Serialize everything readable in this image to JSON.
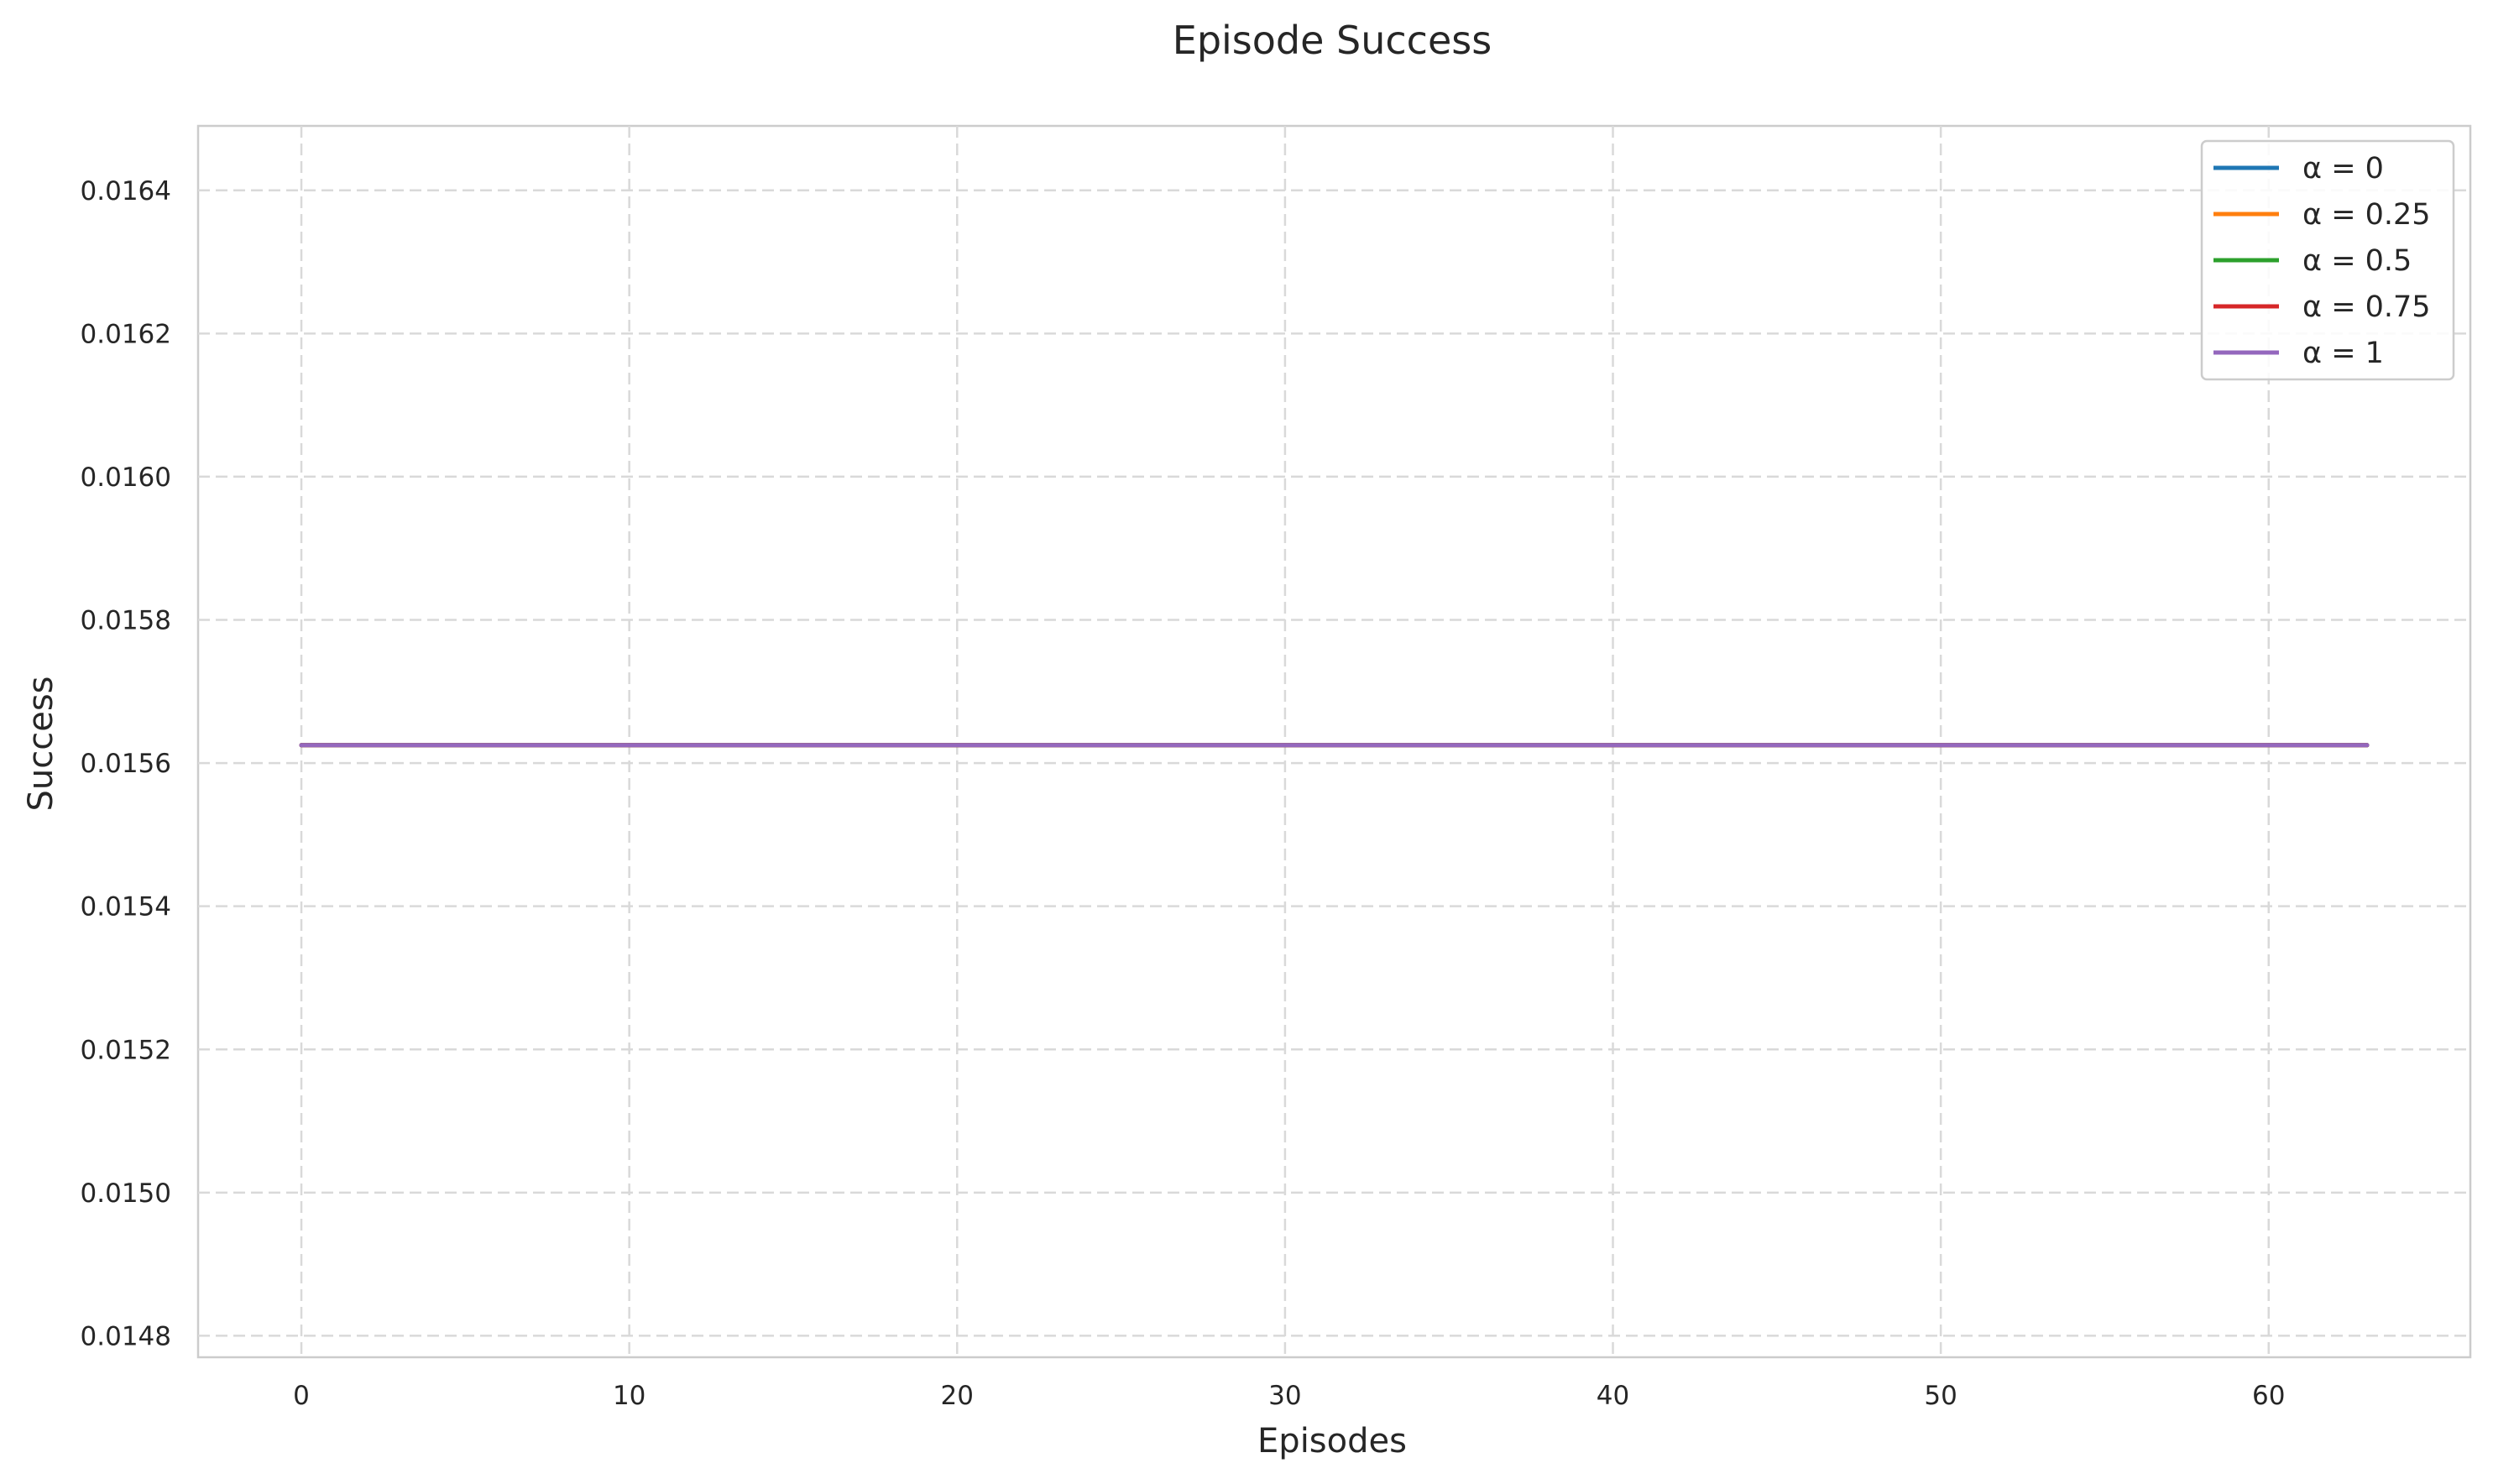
{
  "chart_data": {
    "type": "line",
    "title": "Episode Success",
    "xlabel": "Episodes",
    "ylabel": "Success",
    "xlim": [
      -3.15,
      66.15
    ],
    "ylim": [
      0.01477,
      0.01649
    ],
    "x_ticks": [
      0,
      10,
      20,
      30,
      40,
      50,
      60
    ],
    "x_tick_labels": [
      "0",
      "10",
      "20",
      "30",
      "40",
      "50",
      "60"
    ],
    "y_ticks": [
      0.0148,
      0.015,
      0.0152,
      0.0154,
      0.0156,
      0.0158,
      0.016,
      0.0162,
      0.0164
    ],
    "y_tick_labels": [
      "0.0148",
      "0.0150",
      "0.0152",
      "0.0154",
      "0.0156",
      "0.0158",
      "0.0160",
      "0.0162",
      "0.0164"
    ],
    "grid": true,
    "legend_position": "top-right",
    "series": [
      {
        "name": "α = 0",
        "color": "#1f77b4",
        "x": [
          0,
          63
        ],
        "values": [
          0.015625,
          0.015625
        ]
      },
      {
        "name": "α = 0.25",
        "color": "#ff7f0e",
        "x": [
          0,
          63
        ],
        "values": [
          0.015625,
          0.015625
        ]
      },
      {
        "name": "α = 0.5",
        "color": "#2ca02c",
        "x": [
          0,
          63
        ],
        "values": [
          0.015625,
          0.015625
        ]
      },
      {
        "name": "α = 0.75",
        "color": "#d62728",
        "x": [
          0,
          63
        ],
        "values": [
          0.015625,
          0.015625
        ]
      },
      {
        "name": "α = 1",
        "color": "#9467bd",
        "x": [
          0,
          63
        ],
        "values": [
          0.015625,
          0.015625
        ]
      }
    ]
  }
}
